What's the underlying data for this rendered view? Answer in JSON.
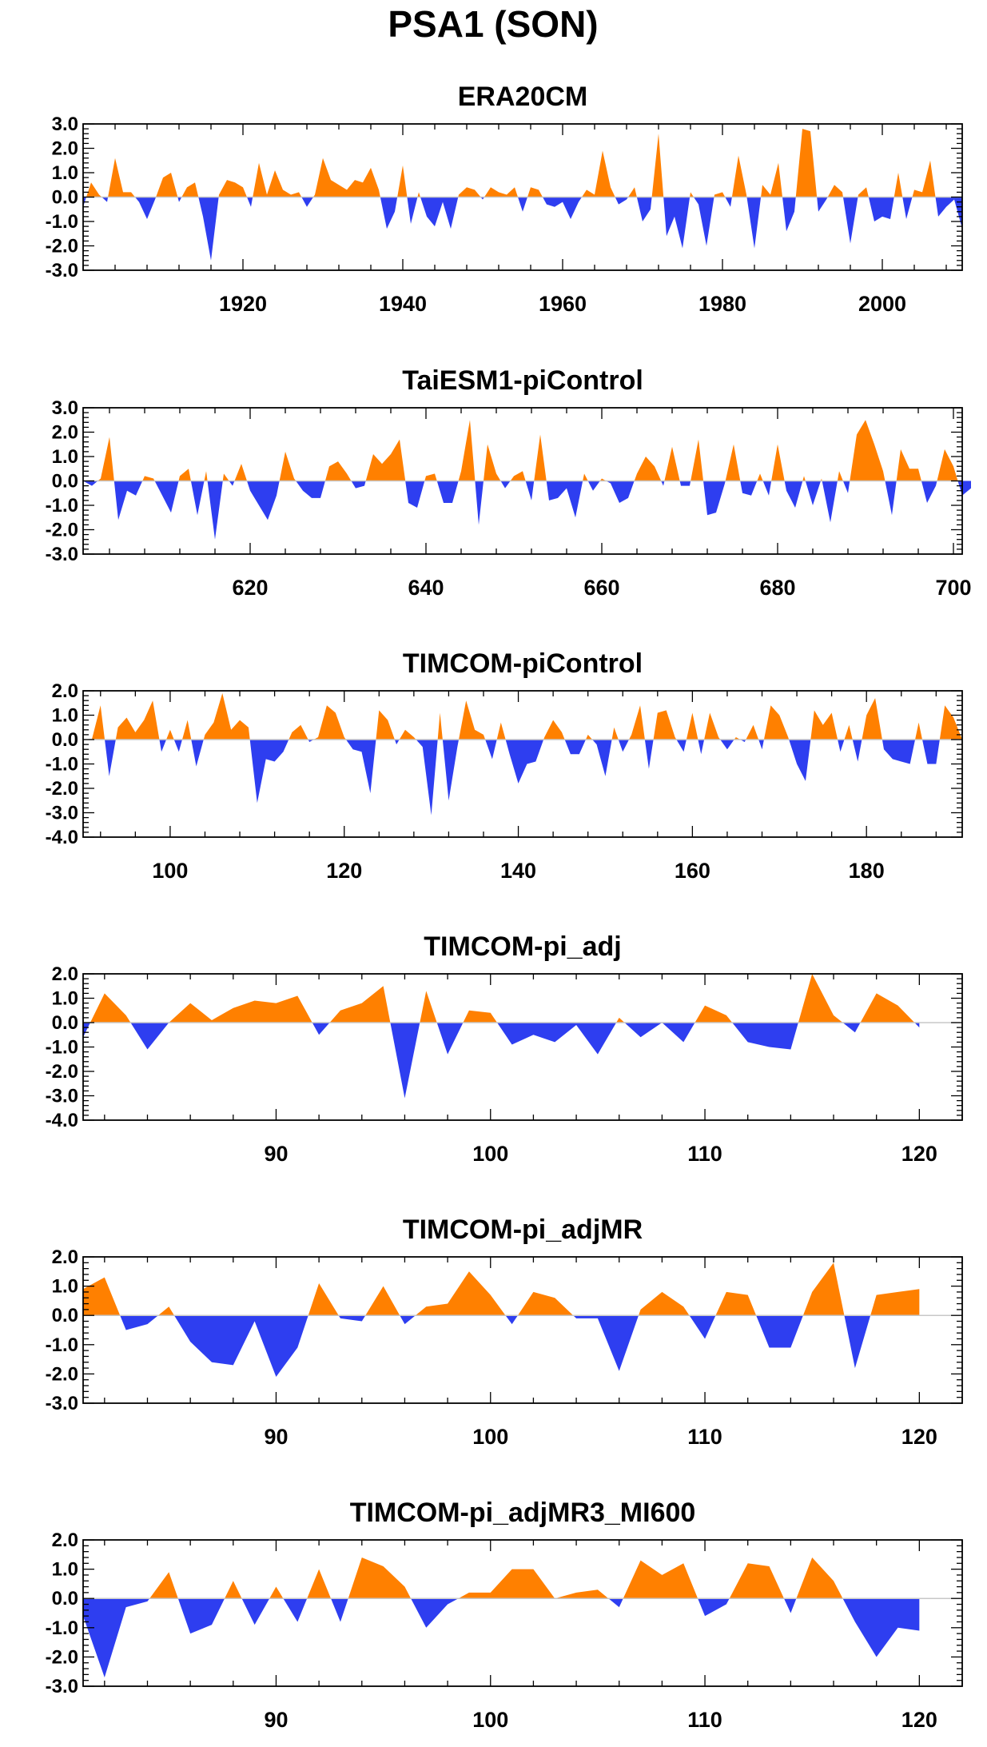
{
  "figure": {
    "title": "PSA1 (SON)",
    "colors": {
      "positive": "#ff8000",
      "negative": "#2e3ef0",
      "axis": "#000000",
      "zero_line": "#c8c8c8"
    }
  },
  "chart_data": [
    {
      "type": "area",
      "title": "ERA20CM",
      "xlim": [
        1900,
        2010
      ],
      "ylim": [
        -3.0,
        3.0
      ],
      "xticks": [
        1920,
        1940,
        1960,
        1980,
        2000
      ],
      "yticks": [
        -3.0,
        -2.0,
        -1.0,
        0.0,
        1.0,
        2.0,
        3.0
      ],
      "x_start": 1900,
      "x_step": 1,
      "values": [
        -0.4,
        0.6,
        0.1,
        -0.2,
        1.6,
        0.2,
        0.2,
        -0.2,
        -0.9,
        -0.1,
        0.8,
        1.0,
        -0.2,
        0.4,
        0.6,
        -0.8,
        -2.6,
        0.1,
        0.7,
        0.6,
        0.4,
        -0.4,
        1.4,
        0.1,
        1.1,
        0.3,
        0.1,
        0.2,
        -0.4,
        0.1,
        1.6,
        0.7,
        0.5,
        0.3,
        0.7,
        0.6,
        1.2,
        0.3,
        -1.3,
        -0.6,
        1.3,
        -1.1,
        0.2,
        -0.8,
        -1.2,
        -0.2,
        -1.3,
        0.1,
        0.4,
        0.3,
        -0.1,
        0.4,
        0.2,
        0.1,
        0.4,
        -0.6,
        0.4,
        0.3,
        -0.3,
        -0.4,
        -0.2,
        -0.9,
        -0.2,
        0.3,
        0.1,
        1.9,
        0.4,
        -0.3,
        -0.1,
        0.4,
        -1.0,
        -0.5,
        2.6,
        -1.6,
        -0.8,
        -2.1,
        0.2,
        -0.3,
        -2.0,
        0.1,
        0.2,
        -0.4,
        1.7,
        0.1,
        -2.1,
        0.5,
        0.1,
        1.4,
        -1.4,
        -0.6,
        2.8,
        2.7,
        -0.6,
        -0.1,
        0.5,
        0.2,
        -1.9,
        0.1,
        0.4,
        -1.0,
        -0.8,
        -0.9,
        1.0,
        -0.9,
        0.3,
        0.2,
        1.5,
        -0.8,
        -0.4,
        -0.1,
        -1.3
      ]
    },
    {
      "type": "area",
      "title": "TaiESM1-piControl",
      "xlim": [
        601,
        701
      ],
      "ylim": [
        -3.0,
        3.0
      ],
      "xticks": [
        620,
        640,
        660,
        680,
        700
      ],
      "yticks": [
        -3.0,
        -2.0,
        -1.0,
        0.0,
        1.0,
        2.0,
        3.0
      ],
      "x_start": 601,
      "x_step": 1,
      "values": [
        0.0,
        -0.2,
        0.1,
        1.8,
        -1.6,
        -0.4,
        -0.6,
        0.2,
        0.1,
        -0.6,
        -1.3,
        0.2,
        0.5,
        -1.4,
        0.4,
        -2.4,
        0.3,
        -0.2,
        0.7,
        -0.4,
        -1.0,
        -1.6,
        -0.6,
        1.2,
        0.1,
        -0.4,
        -0.7,
        -0.7,
        0.6,
        0.8,
        0.3,
        -0.3,
        -0.2,
        1.1,
        0.7,
        1.1,
        1.7,
        -0.9,
        -1.1,
        0.2,
        0.3,
        -0.9,
        -0.9,
        0.4,
        2.5,
        -1.8,
        1.5,
        0.3,
        -0.3,
        0.2,
        0.4,
        -0.8,
        1.9,
        -0.8,
        -0.7,
        -0.3,
        -1.5,
        0.3,
        -0.4,
        0.1,
        -0.1,
        -0.9,
        -0.7,
        0.3,
        1.0,
        0.6,
        -0.2,
        1.4,
        -0.2,
        -0.2,
        1.7,
        -1.4,
        -1.3,
        -0.1,
        1.5,
        -0.5,
        -0.6,
        0.3,
        -0.6,
        1.5,
        -0.4,
        -1.1,
        0.2,
        -1.0,
        0.1,
        -1.7,
        0.4,
        -0.5,
        1.9,
        2.5,
        1.5,
        0.4,
        -1.4,
        1.3,
        0.5,
        0.5,
        -0.9,
        -0.2,
        1.3,
        0.6,
        -0.6,
        -0.3
      ]
    },
    {
      "type": "area",
      "title": "TIMCOM-piControl",
      "xlim": [
        90,
        191
      ],
      "ylim": [
        -4.0,
        2.0
      ],
      "xticks": [
        100,
        120,
        140,
        160,
        180
      ],
      "yticks": [
        -4.0,
        -3.0,
        -2.0,
        -1.0,
        0.0,
        1.0,
        2.0
      ],
      "x_start": 91,
      "x_step": 1,
      "values": [
        0.0,
        1.4,
        -1.5,
        0.5,
        0.9,
        0.3,
        0.8,
        1.6,
        -0.5,
        0.4,
        -0.5,
        0.8,
        -1.1,
        0.2,
        0.7,
        1.9,
        0.4,
        0.8,
        0.5,
        -2.6,
        -0.8,
        -0.9,
        -0.5,
        0.3,
        0.6,
        -0.1,
        0.1,
        1.4,
        1.1,
        0.1,
        -0.4,
        -0.5,
        -2.2,
        1.2,
        0.8,
        -0.2,
        0.4,
        0.1,
        -0.3,
        -3.1,
        1.1,
        -2.5,
        -0.3,
        1.6,
        0.4,
        0.2,
        -0.8,
        0.7,
        -0.6,
        -1.8,
        -1.0,
        -0.9,
        0.1,
        0.8,
        0.3,
        -0.6,
        -0.6,
        0.2,
        -0.2,
        -1.5,
        0.5,
        -0.5,
        0.2,
        1.4,
        -1.2,
        1.1,
        1.2,
        0.1,
        -0.5,
        1.1,
        -0.6,
        1.1,
        0.1,
        -0.4,
        0.1,
        -0.1,
        0.6,
        -0.4,
        1.4,
        1.0,
        0.1,
        -1.0,
        -1.7,
        1.2,
        0.6,
        1.1,
        -0.5,
        0.6,
        -0.9,
        1.0,
        1.7,
        -0.4,
        -0.8,
        -0.9,
        -1.0,
        0.7,
        -1.0,
        -1.0,
        1.4,
        0.9,
        0.0
      ]
    },
    {
      "type": "area",
      "title": "TIMCOM-pi_adj",
      "xlim": [
        81,
        122
      ],
      "ylim": [
        -4.0,
        2.0
      ],
      "xticks": [
        90,
        100,
        110,
        120
      ],
      "yticks": [
        -4.0,
        -3.0,
        -2.0,
        -1.0,
        0.0,
        1.0,
        2.0
      ],
      "x_start": 81,
      "x_step": 1,
      "values": [
        -0.6,
        1.2,
        0.3,
        -1.1,
        0.0,
        0.8,
        0.1,
        0.6,
        0.9,
        0.8,
        1.1,
        -0.5,
        0.5,
        0.8,
        1.5,
        -3.1,
        1.3,
        -1.3,
        0.5,
        0.4,
        -0.9,
        -0.5,
        -0.8,
        -0.1,
        -1.3,
        0.2,
        -0.6,
        0.0,
        -0.8,
        0.7,
        0.3,
        -0.8,
        -1.0,
        -1.1,
        2.0,
        0.3,
        -0.4,
        1.2,
        0.7,
        -0.2
      ]
    },
    {
      "type": "area",
      "title": "TIMCOM-pi_adjMR",
      "xlim": [
        81,
        122
      ],
      "ylim": [
        -3.0,
        2.0
      ],
      "xticks": [
        90,
        100,
        110,
        120
      ],
      "yticks": [
        -3.0,
        -2.0,
        -1.0,
        0.0,
        1.0,
        2.0
      ],
      "x_start": 81,
      "x_step": 1,
      "values": [
        0.9,
        1.3,
        -0.5,
        -0.3,
        0.3,
        -0.9,
        -1.6,
        -1.7,
        -0.2,
        -2.1,
        -1.1,
        1.1,
        -0.1,
        -0.2,
        1.0,
        -0.3,
        0.3,
        0.4,
        1.5,
        0.7,
        -0.3,
        0.8,
        0.6,
        -0.1,
        -0.1,
        -1.9,
        0.2,
        0.8,
        0.3,
        -0.8,
        0.8,
        0.7,
        -1.1,
        -1.1,
        0.8,
        1.8,
        -1.8,
        0.7,
        0.8,
        0.9
      ]
    },
    {
      "type": "area",
      "title": "TIMCOM-pi_adjMR3_MI600",
      "xlim": [
        81,
        122
      ],
      "ylim": [
        -3.0,
        2.0
      ],
      "xticks": [
        90,
        100,
        110,
        120
      ],
      "yticks": [
        -3.0,
        -2.0,
        -1.0,
        0.0,
        1.0,
        2.0
      ],
      "x_start": 81,
      "x_step": 1,
      "values": [
        -0.6,
        -2.7,
        -0.3,
        -0.1,
        0.9,
        -1.2,
        -0.9,
        0.6,
        -0.9,
        0.4,
        -0.8,
        1.0,
        -0.8,
        1.4,
        1.1,
        0.4,
        -1.0,
        -0.2,
        0.2,
        0.2,
        1.0,
        1.0,
        0.0,
        0.2,
        0.3,
        -0.3,
        1.3,
        0.8,
        1.2,
        -0.6,
        -0.2,
        1.2,
        1.1,
        -0.5,
        1.4,
        0.6,
        -0.8,
        -2.0,
        -1.0,
        -1.1
      ]
    }
  ]
}
